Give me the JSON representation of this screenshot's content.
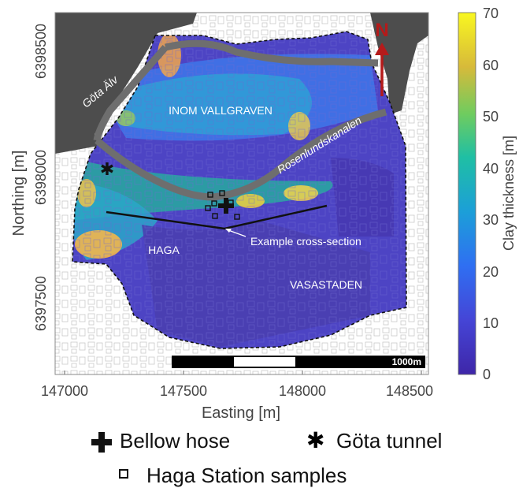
{
  "map": {
    "x_axis_title": "Easting [m]",
    "y_axis_title": "Northing [m]",
    "x_ticks": [
      "147000",
      "147500",
      "148000",
      "148500"
    ],
    "y_ticks": [
      "6398500",
      "6398000",
      "6397500"
    ],
    "north_arrow_label": "N",
    "scale_bar_label": "1000m",
    "labels": {
      "river": "Göta Älv",
      "canal": "Rosenlundskanalen",
      "district_inner": "INOM VALLGRAVEN",
      "district_haga": "HAGA",
      "district_vasastaden": "VASASTADEN",
      "cross_section": "Example cross-section"
    }
  },
  "colorbar": {
    "title": "Clay thickness [m]",
    "ticks": [
      "70",
      "60",
      "50",
      "40",
      "30",
      "20",
      "10",
      "0"
    ],
    "min": 0,
    "max": 70
  },
  "legend": {
    "bellow_hose": "Bellow hose",
    "gota_tunnel": "Göta tunnel",
    "haga_samples": "Haga Station samples"
  },
  "colors": {
    "water": "#4d4d4d",
    "canal": "#6e6e6e",
    "low": "#4a3fb0",
    "mid": "#2b97d6",
    "midhigh": "#27b68d",
    "high": "#f2c232",
    "north_arrow": "#b51a1a"
  }
}
